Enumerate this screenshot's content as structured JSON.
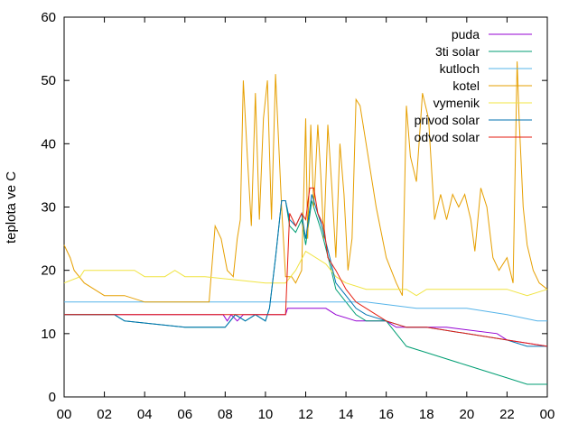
{
  "chart_data": {
    "type": "line",
    "title": "",
    "xlabel": "",
    "ylabel": "teplota ve C",
    "xlim": [
      0,
      24
    ],
    "ylim": [
      0,
      60
    ],
    "x_ticks": [
      "00",
      "02",
      "04",
      "06",
      "08",
      "10",
      "12",
      "14",
      "16",
      "18",
      "20",
      "22",
      "00"
    ],
    "y_ticks": [
      0,
      10,
      20,
      30,
      40,
      50,
      60
    ],
    "grid": false,
    "legend_position": "top-right",
    "series": [
      {
        "name": "puda",
        "color": "#9400d3",
        "x": [
          0,
          3,
          7.9,
          8.1,
          8.3,
          8.6,
          8.9,
          9.5,
          10,
          10.5,
          11,
          11.1,
          12,
          13,
          13.5,
          14.5,
          15,
          16,
          16.5,
          19,
          21.5,
          22,
          24
        ],
        "y": [
          13,
          13,
          13,
          12,
          13,
          12,
          13,
          13,
          13,
          13,
          13,
          14,
          14,
          14,
          13,
          12,
          12,
          12,
          11,
          11,
          10,
          9,
          8
        ]
      },
      {
        "name": "3ti solar",
        "color": "#009e73",
        "x": [
          0,
          2.5,
          3,
          6,
          8,
          8.5,
          9,
          9.5,
          10,
          10.2,
          10.5,
          10.8,
          11,
          11.2,
          11.5,
          11.8,
          12,
          12.3,
          12.5,
          12.8,
          13.2,
          13.5,
          14,
          14.5,
          15,
          16,
          16.5,
          17,
          18,
          20,
          22,
          23,
          24
        ],
        "y": [
          13,
          13,
          12,
          11,
          11,
          13,
          12,
          13,
          12,
          14,
          22,
          31,
          31,
          27,
          26,
          28,
          24,
          31,
          29,
          26,
          21,
          17,
          15,
          13,
          12,
          12,
          10,
          8,
          7,
          5,
          3,
          2,
          2
        ]
      },
      {
        "name": "kutloch",
        "color": "#56b4e9",
        "x": [
          0,
          10,
          15,
          17.5,
          20,
          22,
          23.5,
          24
        ],
        "y": [
          15,
          15,
          15,
          14,
          14,
          13,
          12,
          12
        ]
      },
      {
        "name": "kotel",
        "color": "#e69f00",
        "x": [
          0,
          0.3,
          0.5,
          1,
          1.5,
          2,
          3,
          4,
          5,
          6,
          7,
          7.2,
          7.5,
          7.8,
          8.1,
          8.4,
          8.6,
          8.75,
          8.9,
          9.1,
          9.3,
          9.5,
          9.7,
          9.9,
          10.1,
          10.3,
          10.5,
          10.8,
          11,
          11.3,
          11.5,
          11.8,
          12,
          12.1,
          12.25,
          12.4,
          12.6,
          12.75,
          12.9,
          13.1,
          13.3,
          13.5,
          13.7,
          13.9,
          14.1,
          14.3,
          14.5,
          14.7,
          15,
          15.5,
          16,
          16.5,
          16.8,
          17,
          17.2,
          17.5,
          17.8,
          18.1,
          18.4,
          18.7,
          19,
          19.3,
          19.6,
          19.9,
          20.2,
          20.4,
          20.7,
          21.0,
          21.3,
          21.6,
          22.0,
          22.3,
          22.5,
          22.6,
          22.8,
          23.0,
          23.3,
          23.6,
          24
        ],
        "y": [
          24,
          22,
          20,
          18,
          17,
          16,
          16,
          15,
          15,
          15,
          15,
          15,
          27,
          25,
          20,
          19,
          25,
          28,
          50,
          38,
          27,
          48,
          28,
          44,
          50,
          28,
          51,
          30,
          19,
          19,
          18,
          20,
          44,
          25,
          43,
          30,
          43,
          35,
          25,
          43,
          33,
          22,
          40,
          32,
          20,
          25,
          47,
          46,
          40,
          30,
          22,
          18,
          16,
          46,
          38,
          34,
          48,
          44,
          28,
          32,
          28,
          32,
          30,
          32,
          28,
          23,
          33,
          30,
          22,
          20,
          22,
          18,
          53,
          44,
          30,
          24,
          20,
          18,
          17
        ]
      },
      {
        "name": "vymenik",
        "color": "#f0e442",
        "x": [
          0,
          0.8,
          1,
          2,
          3.5,
          4,
          5,
          5.5,
          6,
          7,
          10,
          11,
          11.5,
          12,
          13,
          13.5,
          14,
          15,
          16,
          17,
          17.5,
          18,
          19,
          20,
          21,
          22,
          23,
          24
        ],
        "y": [
          18,
          19,
          20,
          20,
          20,
          19,
          19,
          20,
          19,
          19,
          18,
          18,
          20,
          23,
          21,
          19,
          18,
          17,
          17,
          17,
          16,
          17,
          17,
          17,
          17,
          17,
          16,
          17
        ]
      },
      {
        "name": "privod solar",
        "color": "#0072b2",
        "x": [
          0,
          2.5,
          3,
          6,
          8,
          8.5,
          9,
          9.5,
          10,
          10.2,
          10.5,
          10.8,
          11,
          11.2,
          11.5,
          11.8,
          12,
          12.3,
          12.5,
          12.8,
          13.2,
          13.5,
          14,
          14.5,
          15,
          16,
          17,
          18,
          20,
          22,
          23,
          24
        ],
        "y": [
          13,
          13,
          12,
          11,
          11,
          13,
          12,
          13,
          12,
          14,
          22,
          31,
          31,
          28,
          27,
          29,
          25,
          32,
          30,
          27,
          22,
          18,
          16,
          14,
          13,
          12,
          11,
          11,
          10,
          9,
          8,
          8
        ]
      },
      {
        "name": "odvod solar",
        "color": "#e51e10",
        "x": [
          0,
          5,
          10,
          10.8,
          11,
          11.2,
          11.5,
          11.8,
          12,
          12.2,
          12.4,
          12.6,
          12.9,
          13.1,
          13.5,
          14,
          14.5,
          15,
          16,
          17,
          18,
          20,
          22,
          24
        ],
        "y": [
          13,
          13,
          13,
          13,
          13,
          29,
          27,
          29,
          28,
          33,
          33,
          29,
          27,
          22,
          20,
          17,
          15,
          14,
          12,
          11,
          11,
          10,
          9,
          8
        ]
      }
    ]
  }
}
